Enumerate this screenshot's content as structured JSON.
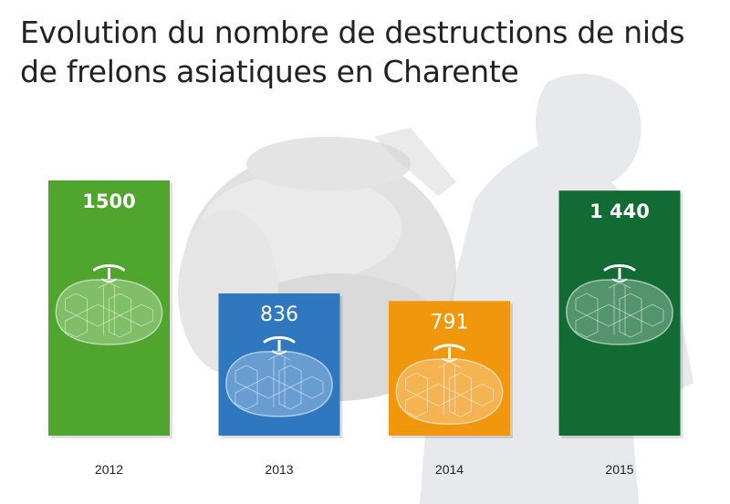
{
  "title_lines": [
    "Evolution du nombre de destructions de nids",
    "de frelons asiatiques en Charente"
  ],
  "colors": {
    "2012": "#4fa52e",
    "2013": "#2f78c0",
    "2014": "#f1970e",
    "2015": "#136b34",
    "background_photo": "#dcdcdc"
  },
  "icons": [
    "hornet-nest-icon"
  ],
  "chart_data": {
    "type": "bar",
    "title": "Evolution du nombre de destructions de nids de frelons asiatiques en Charente",
    "categories": [
      "2012",
      "2013",
      "2014",
      "2015"
    ],
    "values": [
      1500,
      836,
      791,
      1440
    ],
    "value_labels": [
      "1500",
      "836",
      "791",
      "1 440"
    ],
    "xlabel": "",
    "ylabel": "",
    "grid": false,
    "legend": "none"
  }
}
